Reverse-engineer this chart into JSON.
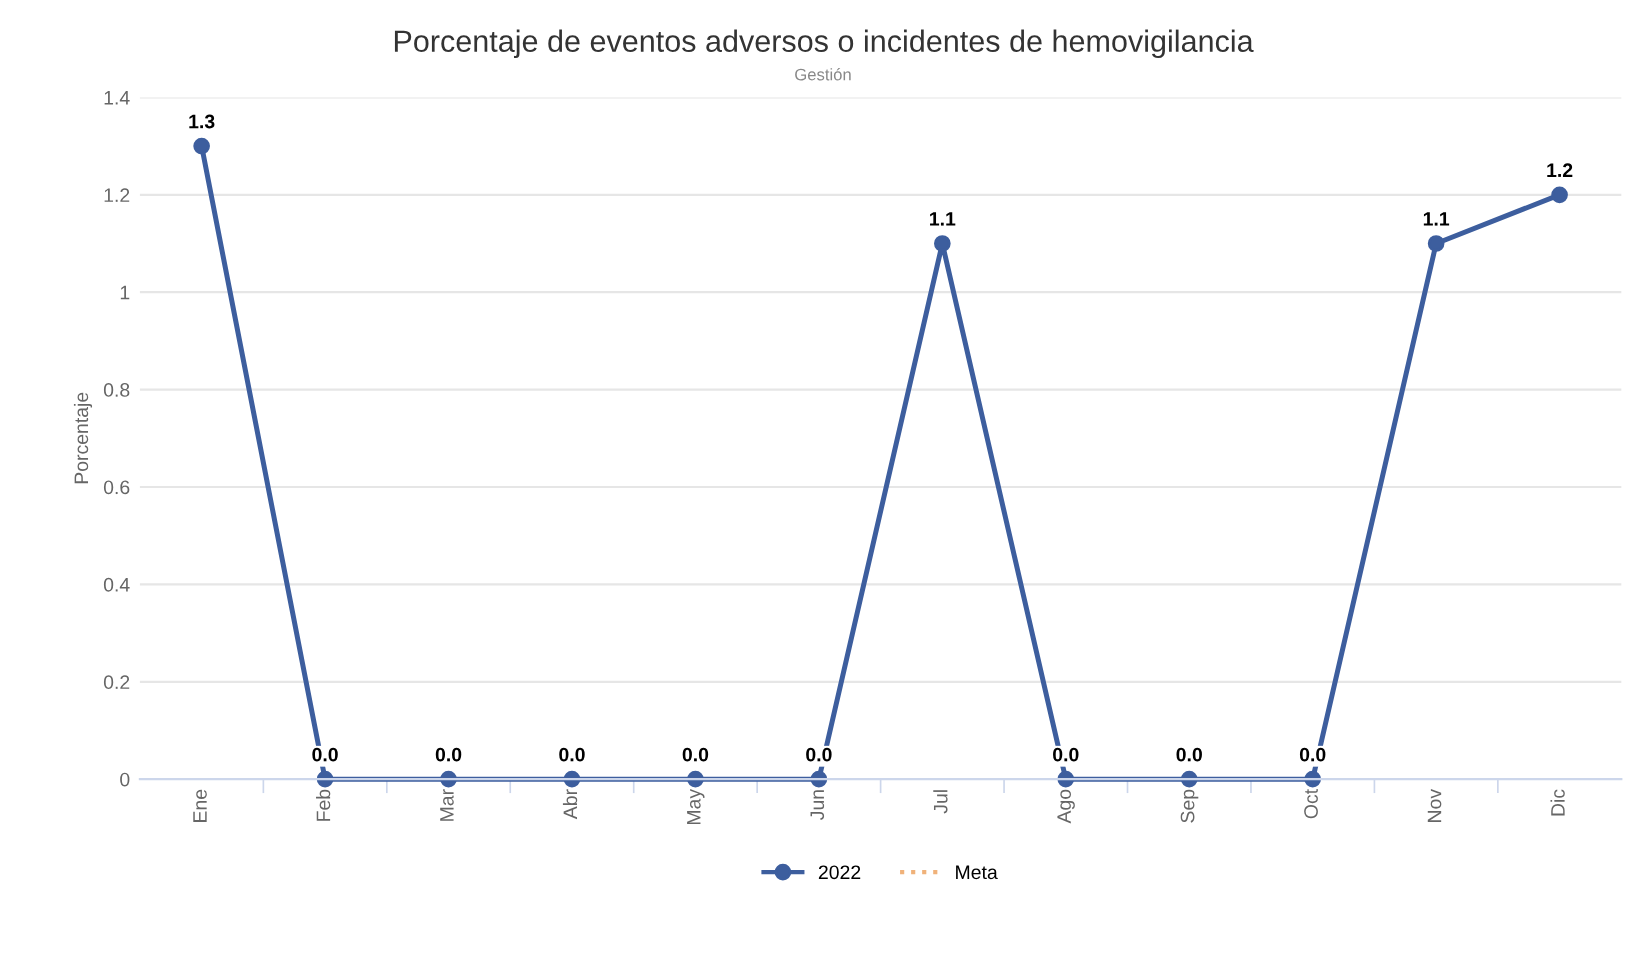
{
  "chart_data": {
    "type": "line",
    "title": "Porcentaje de eventos adversos o incidentes de hemovigilancia",
    "subtitle": "Gestión",
    "ylabel": "Porcentaje",
    "categories": [
      "Ene",
      "Feb",
      "Mar",
      "Abr",
      "May",
      "Jun",
      "Jul",
      "Ago",
      "Sep",
      "Oct",
      "Nov",
      "Dic"
    ],
    "series": [
      {
        "name": "2022",
        "color": "#3d5e9e",
        "values": [
          1.3,
          0,
          0,
          0,
          0,
          0,
          1.1,
          0,
          0,
          0,
          1.1,
          1.2
        ],
        "value_labels": [
          "1.3",
          "0.0",
          "0.0",
          "0.0",
          "0.0",
          "0.0",
          "1.1",
          "0.0",
          "0.0",
          "0.0",
          "1.1",
          "1.2"
        ],
        "marker": "circle",
        "line_style": "solid"
      },
      {
        "name": "Meta",
        "color": "#f0b27a",
        "values": [
          null,
          null,
          null,
          null,
          null,
          null,
          null,
          null,
          null,
          null,
          null,
          null
        ],
        "marker": "none",
        "line_style": "dotted"
      }
    ],
    "ylim": [
      0,
      1.4
    ],
    "yticks": [
      0,
      0.2,
      0.4,
      0.6,
      0.8,
      1,
      1.2,
      1.4
    ],
    "grid": "y",
    "legend": "bottom"
  }
}
